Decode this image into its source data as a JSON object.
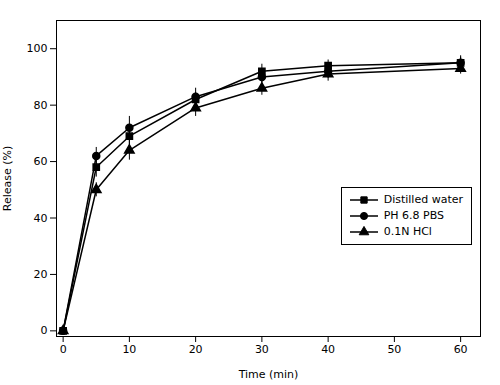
{
  "chart_data": {
    "type": "line",
    "xlabel": "Time (min)",
    "ylabel": "Release (%)",
    "x": [
      0,
      5,
      10,
      20,
      30,
      40,
      60
    ],
    "series": [
      {
        "name": "Distilled water",
        "color": "#000000",
        "marker": "square",
        "values": [
          0,
          58,
          69,
          82,
          92,
          94,
          95
        ],
        "errors": [
          0,
          3.5,
          3.0,
          2.5,
          2.5,
          2.0,
          2.5
        ]
      },
      {
        "name": "PH 6.8 PBS",
        "color": "#000000",
        "marker": "circle",
        "values": [
          0,
          62,
          72,
          83,
          90,
          92,
          95
        ],
        "errors": [
          0,
          3.0,
          4.0,
          3.0,
          2.0,
          2.5,
          2.0
        ]
      },
      {
        "name": "0.1N HCl",
        "color": "#000000",
        "marker": "triangle",
        "values": [
          0,
          50,
          64,
          79,
          86,
          91,
          93
        ],
        "errors": [
          0,
          2.5,
          3.5,
          3.0,
          2.5,
          2.5,
          2.0
        ]
      }
    ],
    "xlim": [
      -1,
      63
    ],
    "ylim": [
      -2,
      110
    ],
    "xticks": [
      0,
      10,
      20,
      30,
      40,
      50,
      60
    ],
    "yticks": [
      0,
      20,
      40,
      60,
      80,
      100
    ],
    "legend": "right",
    "grid": false
  }
}
